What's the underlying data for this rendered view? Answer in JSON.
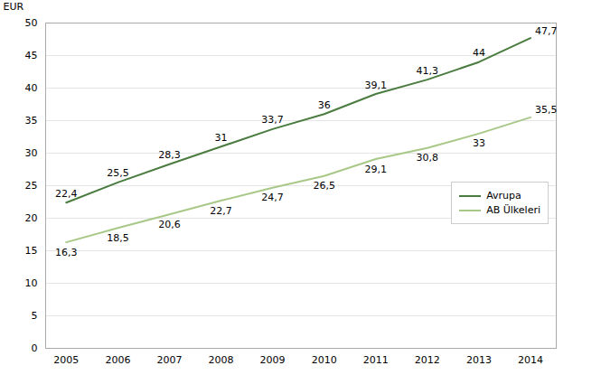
{
  "chart_data": {
    "type": "line",
    "x": [
      2005,
      2006,
      2007,
      2008,
      2009,
      2010,
      2011,
      2012,
      2013,
      2014
    ],
    "series": [
      {
        "name": "Avrupa",
        "color": "#4a7c3f",
        "values": [
          22.4,
          25.5,
          28.3,
          31.0,
          33.7,
          36.0,
          39.1,
          41.3,
          44.0,
          47.7
        ],
        "value_labels": [
          "22,4",
          "25,5",
          "28,3",
          "31",
          "33,7",
          "36",
          "39,1",
          "41,3",
          "44",
          "47,7"
        ]
      },
      {
        "name": "AB Ülkeleri",
        "color": "#a8c888",
        "values": [
          16.3,
          18.5,
          20.6,
          22.7,
          24.7,
          26.5,
          29.1,
          30.8,
          33.0,
          35.5
        ],
        "value_labels": [
          "16,3",
          "18,5",
          "20,6",
          "22,7",
          "24,7",
          "26,5",
          "29,1",
          "30,8",
          "33",
          "35,5"
        ]
      }
    ],
    "xlim": [
      2004.6,
      2014.5
    ],
    "xticks": [
      2005,
      2006,
      2007,
      2008,
      2009,
      2010,
      2011,
      2012,
      2013,
      2014
    ],
    "ylim": [
      0,
      50
    ],
    "yticks": [
      0,
      5,
      10,
      15,
      20,
      25,
      30,
      35,
      40,
      45,
      50
    ],
    "ylabel": "EUR",
    "grid": true,
    "legend": "right",
    "data_labels": true
  }
}
